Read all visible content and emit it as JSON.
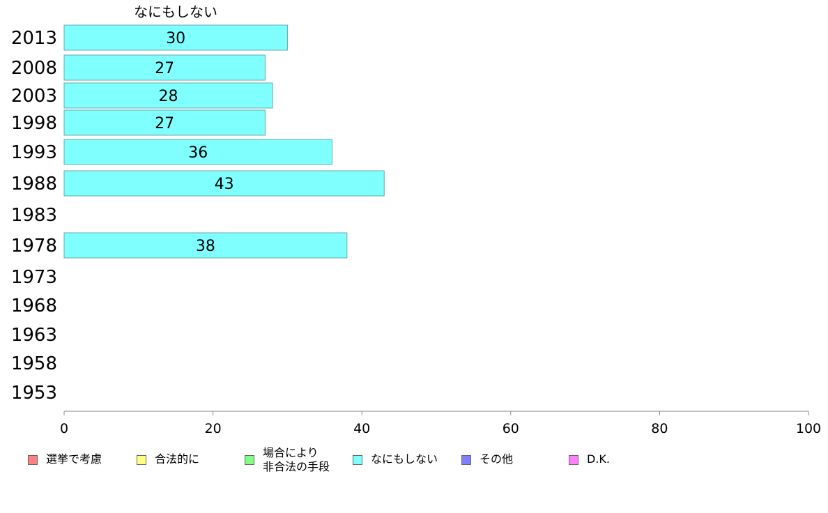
{
  "chart_data": {
    "type": "bar",
    "orientation": "horizontal",
    "title": "なにもしない",
    "categories": [
      "2013",
      "2008",
      "2003",
      "1998",
      "1993",
      "1988",
      "1983",
      "1978",
      "1973",
      "1968",
      "1963",
      "1958",
      "1953"
    ],
    "series": [
      {
        "name": "なにもしない",
        "color": "#80ffff",
        "values": [
          30,
          27,
          28,
          27,
          36,
          43,
          null,
          38,
          null,
          null,
          null,
          null,
          null
        ]
      }
    ],
    "xlim": [
      0,
      100
    ],
    "xticks": [
      0,
      20,
      40,
      60,
      80,
      100
    ],
    "grid": false,
    "legend_placement": "bottom"
  },
  "legend": [
    {
      "label": "選挙で考慮",
      "color": "#ff8080"
    },
    {
      "label": "合法的に",
      "color": "#ffff80"
    },
    {
      "label": "場合により\n非合法の手段",
      "color": "#80ff80"
    },
    {
      "label": "なにもしない",
      "color": "#80ffff"
    },
    {
      "label": "その他",
      "color": "#8080ff"
    },
    {
      "label": "D.K.",
      "color": "#ff80ff"
    }
  ]
}
